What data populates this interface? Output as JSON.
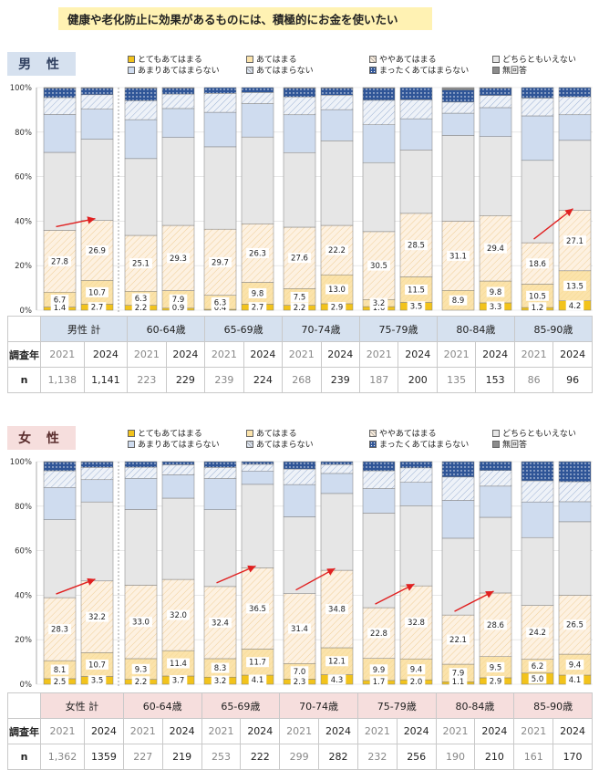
{
  "page_title": "健康や老化防止に効果があるものには、積極的にお金を使いたい",
  "legend": [
    {
      "label": "とてもあてはまる",
      "color": "#f2c31c",
      "pattern": "solid"
    },
    {
      "label": "あてはまる",
      "color": "#fbe3ab",
      "pattern": "solid"
    },
    {
      "label": "ややあてはまる",
      "color": "#fdf1e1",
      "pattern": "hatch"
    },
    {
      "label": "どちらともいえない",
      "color": "#e6e6e6",
      "pattern": "solid"
    },
    {
      "label": "あまりあてはまらない",
      "color": "#cfdcef",
      "pattern": "solid"
    },
    {
      "label": "あてはまらない",
      "color": "#dfe7f3",
      "pattern": "hatch"
    },
    {
      "label": "まったくあてはまらない",
      "color": "#2f5597",
      "pattern": "dots"
    },
    {
      "label": "無回答",
      "color": "#8c8c8c",
      "pattern": "solid"
    }
  ],
  "table_headers": {
    "year": "調査年",
    "n": "n"
  },
  "chart_data": [
    {
      "type": "bar",
      "stacked": true,
      "title": "男 性",
      "ylim": [
        0,
        100
      ],
      "yticks": [
        "0%",
        "20%",
        "40%",
        "60%",
        "80%",
        "100%"
      ],
      "groups": [
        "男性 計",
        "60-64歳",
        "65-69歳",
        "70-74歳",
        "75-79歳",
        "80-84歳",
        "85-90歳"
      ],
      "bars": [
        {
          "group": 0,
          "year": "2021",
          "n": "1,138",
          "values": [
            1.4,
            6.7,
            27.8,
            35.0,
            17.0,
            7.6,
            4.2,
            0.3
          ]
        },
        {
          "group": 0,
          "year": "2024",
          "n": "1,141",
          "values": [
            2.7,
            10.7,
            26.9,
            36.5,
            13.5,
            6.5,
            3.0,
            0.2
          ]
        },
        {
          "group": 1,
          "year": "2021",
          "n": "223",
          "values": [
            2.2,
            6.3,
            25.1,
            34.5,
            17.5,
            8.5,
            5.6,
            0.3
          ]
        },
        {
          "group": 1,
          "year": "2024",
          "n": "229",
          "values": [
            0.9,
            7.9,
            29.3,
            39.5,
            13.0,
            6.5,
            2.7,
            0.2
          ]
        },
        {
          "group": 2,
          "year": "2021",
          "n": "239",
          "values": [
            0.4,
            6.3,
            29.7,
            37.0,
            15.5,
            8.5,
            2.6,
            0.0
          ]
        },
        {
          "group": 2,
          "year": "2024",
          "n": "224",
          "values": [
            2.7,
            9.8,
            26.3,
            39.0,
            15.0,
            5.0,
            2.2,
            0.0
          ]
        },
        {
          "group": 3,
          "year": "2021",
          "n": "268",
          "values": [
            2.2,
            7.5,
            27.6,
            33.5,
            17.0,
            8.0,
            4.0,
            0.2
          ]
        },
        {
          "group": 3,
          "year": "2024",
          "n": "239",
          "values": [
            2.9,
            13.0,
            22.2,
            38.0,
            14.0,
            6.5,
            3.2,
            0.2
          ]
        },
        {
          "group": 4,
          "year": "2021",
          "n": "187",
          "values": [
            1.6,
            3.2,
            30.5,
            31.0,
            17.0,
            11.0,
            5.5,
            0.2
          ]
        },
        {
          "group": 4,
          "year": "2024",
          "n": "200",
          "values": [
            3.5,
            11.5,
            28.5,
            28.5,
            14.0,
            8.5,
            5.5,
            0.0
          ]
        },
        {
          "group": 5,
          "year": "2021",
          "n": "135",
          "values": [
            0.0,
            8.9,
            31.1,
            38.5,
            10.0,
            5.0,
            5.5,
            1.0
          ]
        },
        {
          "group": 5,
          "year": "2024",
          "n": "153",
          "values": [
            3.3,
            9.8,
            29.4,
            35.5,
            13.0,
            5.5,
            3.3,
            0.2
          ]
        },
        {
          "group": 6,
          "year": "2021",
          "n": "86",
          "values": [
            1.2,
            10.5,
            18.6,
            37.0,
            20.0,
            8.0,
            4.7,
            0.0
          ]
        },
        {
          "group": 6,
          "year": "2024",
          "n": "96",
          "values": [
            4.2,
            13.5,
            27.1,
            31.5,
            11.5,
            8.0,
            4.2,
            0.0
          ]
        }
      ],
      "labels": [
        [
          [
            "1.4",
            0
          ],
          [
            "6.7",
            1
          ],
          [
            "27.8",
            2
          ]
        ],
        [
          [
            "2.7",
            0
          ],
          [
            "10.7",
            1
          ],
          [
            "26.9",
            2
          ]
        ],
        [
          [
            "2.2",
            0
          ],
          [
            "6.3",
            1
          ],
          [
            "25.1",
            2
          ]
        ],
        [
          [
            "0.9",
            0
          ],
          [
            "7.9",
            1
          ],
          [
            "29.3",
            2
          ]
        ],
        [
          [
            "0.4",
            0
          ],
          [
            "6.3",
            1
          ],
          [
            "29.7",
            2
          ]
        ],
        [
          [
            "2.7",
            0
          ],
          [
            "9.8",
            1
          ],
          [
            "26.3",
            2
          ]
        ],
        [
          [
            "2.2",
            0
          ],
          [
            "7.5",
            1
          ],
          [
            "27.6",
            2
          ]
        ],
        [
          [
            "2.9",
            0
          ],
          [
            "13.0",
            1
          ],
          [
            "22.2",
            2
          ]
        ],
        [
          [
            "1.6",
            0
          ],
          [
            "3.2",
            1
          ],
          [
            "30.5",
            2
          ]
        ],
        [
          [
            "3.5",
            0
          ],
          [
            "11.5",
            1
          ],
          [
            "28.5",
            2
          ]
        ],
        [
          [
            "8.9",
            1
          ],
          [
            "31.1",
            2
          ]
        ],
        [
          [
            "3.3",
            0
          ],
          [
            "9.8",
            1
          ],
          [
            "29.4",
            2
          ]
        ],
        [
          [
            "1.2",
            0
          ],
          [
            "10.5",
            1
          ],
          [
            "18.6",
            2
          ]
        ],
        [
          [
            "4.2",
            0
          ],
          [
            "13.5",
            1
          ],
          [
            "27.1",
            2
          ]
        ]
      ],
      "arrows": [
        0,
        6
      ]
    },
    {
      "type": "bar",
      "stacked": true,
      "title": "女 性",
      "ylim": [
        0,
        100
      ],
      "yticks": [
        "0%",
        "20%",
        "40%",
        "60%",
        "80%",
        "100%"
      ],
      "groups": [
        "女性 計",
        "60-64歳",
        "65-69歳",
        "70-74歳",
        "75-79歳",
        "80-84歳",
        "85-90歳"
      ],
      "bars": [
        {
          "group": 0,
          "year": "2021",
          "n": "1,362",
          "values": [
            2.5,
            8.1,
            28.3,
            35.0,
            14.5,
            7.5,
            4.0,
            0.1
          ]
        },
        {
          "group": 0,
          "year": "2024",
          "n": "1359",
          "values": [
            3.5,
            10.7,
            32.2,
            35.5,
            10.0,
            5.5,
            2.5,
            0.1
          ]
        },
        {
          "group": 1,
          "year": "2021",
          "n": "227",
          "values": [
            2.2,
            9.3,
            33.0,
            34.0,
            14.0,
            5.0,
            2.5,
            0.0
          ]
        },
        {
          "group": 1,
          "year": "2024",
          "n": "219",
          "values": [
            3.7,
            11.4,
            32.0,
            36.5,
            10.5,
            4.5,
            1.4,
            0.0
          ]
        },
        {
          "group": 2,
          "year": "2021",
          "n": "253",
          "values": [
            3.2,
            8.3,
            32.4,
            34.5,
            14.0,
            5.0,
            2.6,
            0.0
          ]
        },
        {
          "group": 2,
          "year": "2024",
          "n": "222",
          "values": [
            4.1,
            11.7,
            36.5,
            37.5,
            6.0,
            3.0,
            1.2,
            0.0
          ]
        },
        {
          "group": 3,
          "year": "2021",
          "n": "299",
          "values": [
            2.3,
            7.0,
            31.4,
            34.5,
            14.5,
            7.0,
            3.3,
            0.0
          ]
        },
        {
          "group": 3,
          "year": "2024",
          "n": "282",
          "values": [
            4.3,
            12.1,
            34.8,
            34.5,
            9.0,
            4.0,
            1.3,
            0.0
          ]
        },
        {
          "group": 4,
          "year": "2021",
          "n": "232",
          "values": [
            1.7,
            9.9,
            22.8,
            42.5,
            11.0,
            8.0,
            4.1,
            0.0
          ]
        },
        {
          "group": 4,
          "year": "2024",
          "n": "256",
          "values": [
            2.0,
            9.4,
            32.8,
            36.0,
            10.5,
            6.5,
            2.8,
            0.0
          ]
        },
        {
          "group": 5,
          "year": "2021",
          "n": "190",
          "values": [
            1.1,
            7.9,
            22.1,
            34.5,
            17.0,
            10.5,
            6.9,
            0.0
          ]
        },
        {
          "group": 5,
          "year": "2024",
          "n": "210",
          "values": [
            2.9,
            9.5,
            28.6,
            34.0,
            14.0,
            7.0,
            4.0,
            0.0
          ]
        },
        {
          "group": 6,
          "year": "2021",
          "n": "161",
          "values": [
            5.0,
            6.2,
            24.2,
            30.5,
            16.0,
            9.5,
            8.6,
            0.0
          ]
        },
        {
          "group": 6,
          "year": "2024",
          "n": "170",
          "values": [
            4.1,
            9.4,
            26.5,
            33.0,
            9.0,
            9.0,
            9.0,
            0.0
          ]
        }
      ],
      "labels": [
        [
          [
            "2.5",
            0
          ],
          [
            "8.1",
            1
          ],
          [
            "28.3",
            2
          ]
        ],
        [
          [
            "3.5",
            0
          ],
          [
            "10.7",
            1
          ],
          [
            "32.2",
            2
          ]
        ],
        [
          [
            "2.2",
            0
          ],
          [
            "9.3",
            1
          ],
          [
            "33.0",
            2
          ]
        ],
        [
          [
            "3.7",
            0
          ],
          [
            "11.4",
            1
          ],
          [
            "32.0",
            2
          ]
        ],
        [
          [
            "3.2",
            0
          ],
          [
            "8.3",
            1
          ],
          [
            "32.4",
            2
          ]
        ],
        [
          [
            "4.1",
            0
          ],
          [
            "11.7",
            1
          ],
          [
            "36.5",
            2
          ]
        ],
        [
          [
            "2.3",
            0
          ],
          [
            "7.0",
            1
          ],
          [
            "31.4",
            2
          ]
        ],
        [
          [
            "4.3",
            0
          ],
          [
            "12.1",
            1
          ],
          [
            "34.8",
            2
          ]
        ],
        [
          [
            "1.7",
            0
          ],
          [
            "9.9",
            1
          ],
          [
            "22.8",
            2
          ]
        ],
        [
          [
            "2.0",
            0
          ],
          [
            "9.4",
            1
          ],
          [
            "32.8",
            2
          ]
        ],
        [
          [
            "1.1",
            0
          ],
          [
            "7.9",
            1
          ],
          [
            "22.1",
            2
          ]
        ],
        [
          [
            "2.9",
            0
          ],
          [
            "9.5",
            1
          ],
          [
            "28.6",
            2
          ]
        ],
        [
          [
            "5.0",
            0
          ],
          [
            "6.2",
            1
          ],
          [
            "24.2",
            2
          ]
        ],
        [
          [
            "4.1",
            0
          ],
          [
            "9.4",
            1
          ],
          [
            "26.5",
            2
          ]
        ]
      ],
      "arrows": [
        0,
        2,
        3,
        4,
        5
      ]
    }
  ]
}
